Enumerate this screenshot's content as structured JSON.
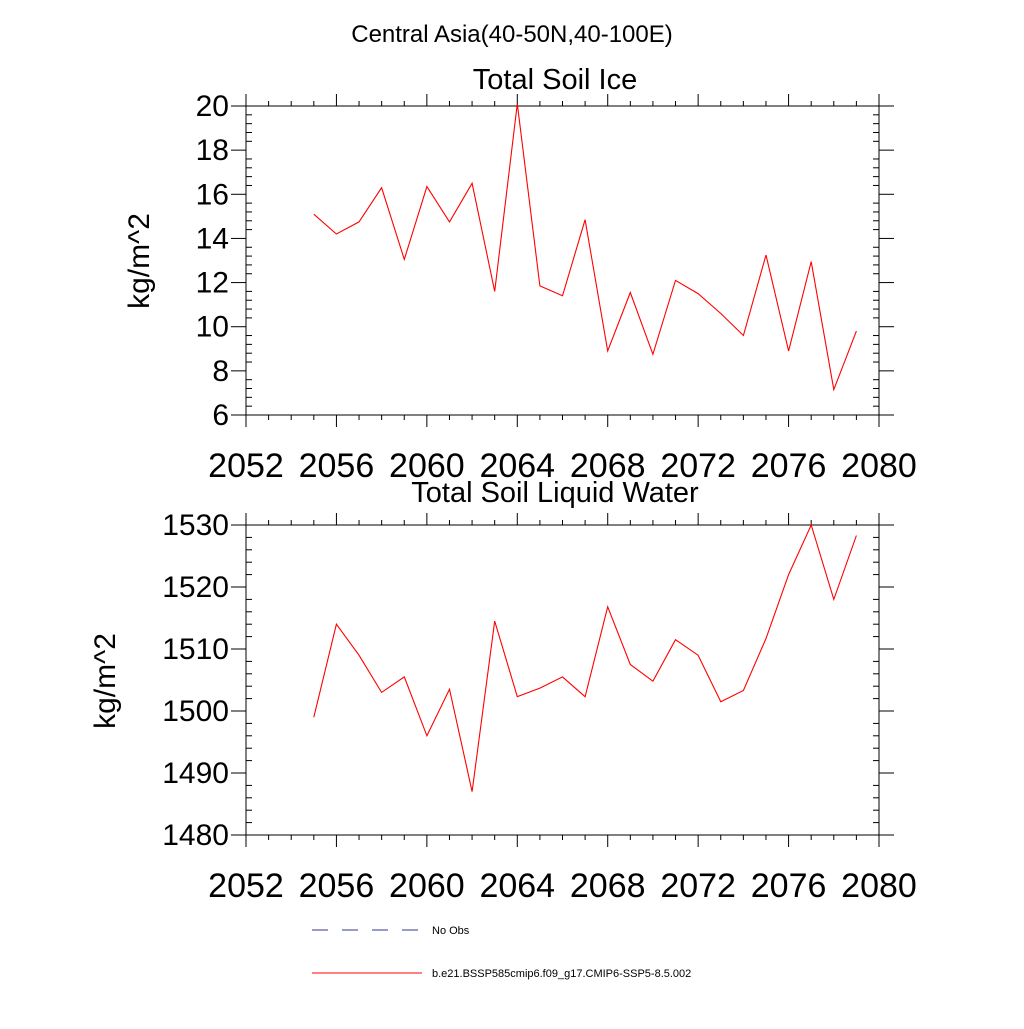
{
  "figure": {
    "title": "Central Asia(40-50N,40-100E)"
  },
  "chart_data": [
    {
      "type": "line",
      "title": "Total Soil Ice",
      "xlabel": "",
      "ylabel": "kg/m^2",
      "xlim": [
        2052,
        2080
      ],
      "ylim": [
        6,
        20
      ],
      "x_ticks": [
        2052,
        2056,
        2060,
        2064,
        2068,
        2072,
        2076,
        2080
      ],
      "y_ticks": [
        6,
        8,
        10,
        12,
        14,
        16,
        18,
        20
      ],
      "grid": false,
      "series": [
        {
          "color": "#ff0000",
          "x": [
            2055,
            2056,
            2057,
            2058,
            2059,
            2060,
            2061,
            2062,
            2063,
            2064,
            2065,
            2066,
            2067,
            2068,
            2069,
            2070,
            2071,
            2072,
            2073,
            2074,
            2075,
            2076,
            2077,
            2078,
            2079
          ],
          "y": [
            15.1,
            14.2,
            14.75,
            16.3,
            13.05,
            16.35,
            14.75,
            16.5,
            11.6,
            20.1,
            11.85,
            11.4,
            14.85,
            8.9,
            11.55,
            8.75,
            12.1,
            11.5,
            10.6,
            9.6,
            13.25,
            8.9,
            12.95,
            7.15,
            9.8
          ]
        }
      ]
    },
    {
      "type": "line",
      "title": "Total Soil Liquid Water",
      "xlabel": "",
      "ylabel": "kg/m^2",
      "xlim": [
        2052,
        2080
      ],
      "ylim": [
        1480,
        1530
      ],
      "x_ticks": [
        2052,
        2056,
        2060,
        2064,
        2068,
        2072,
        2076,
        2080
      ],
      "y_ticks": [
        1480,
        1490,
        1500,
        1510,
        1520,
        1530
      ],
      "grid": false,
      "series": [
        {
          "color": "#ff0000",
          "x": [
            2055,
            2056,
            2057,
            2058,
            2059,
            2060,
            2061,
            2062,
            2063,
            2064,
            2065,
            2066,
            2067,
            2068,
            2069,
            2070,
            2071,
            2072,
            2073,
            2074,
            2075,
            2076,
            2077,
            2078,
            2079
          ],
          "y": [
            1499,
            1514,
            1509,
            1503,
            1505.5,
            1496,
            1503.5,
            1487,
            1514.5,
            1502.3,
            1503.7,
            1505.5,
            1502.3,
            1516.8,
            1507.5,
            1504.8,
            1511.5,
            1509,
            1501.5,
            1503.3,
            1511.7,
            1522,
            1530,
            1518,
            1528.3
          ]
        }
      ]
    }
  ],
  "legend": {
    "items": [
      {
        "label": "No Obs",
        "color": "#2e3a8c",
        "style": "dashed"
      },
      {
        "label": "b.e21.BSSP585cmip6.f09_g17.CMIP6-SSP5-8.5.002",
        "color": "#ff0000",
        "style": "solid"
      }
    ]
  }
}
